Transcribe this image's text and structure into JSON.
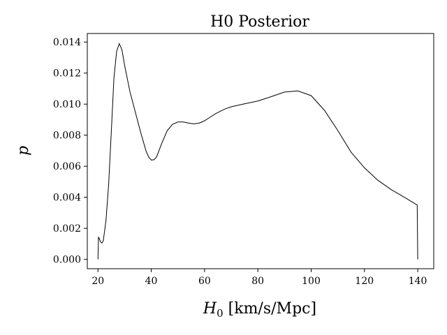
{
  "chart_data": {
    "type": "line",
    "title": "H0 Posterior",
    "xlabel_math": "H",
    "xlabel_sub": "0",
    "xlabel_units": " [km/s/Mpc]",
    "ylabel": "p",
    "xlim": [
      16,
      146
    ],
    "ylim": [
      -0.0006,
      0.01455
    ],
    "xticks": [
      20,
      40,
      60,
      80,
      100,
      120,
      140
    ],
    "xtick_labels": [
      "20",
      "40",
      "60",
      "80",
      "100",
      "120",
      "140"
    ],
    "yticks": [
      0.0,
      0.002,
      0.004,
      0.006,
      0.008,
      0.01,
      0.012,
      0.014
    ],
    "ytick_labels": [
      "0.000",
      "0.002",
      "0.004",
      "0.006",
      "0.008",
      "0.010",
      "0.012",
      "0.014"
    ],
    "grid": false,
    "line_color": "#000000",
    "series": [
      {
        "x": [
          20,
          20.2,
          21,
          21.5,
          22,
          23,
          24,
          25,
          26,
          27,
          28,
          29,
          30,
          32,
          34,
          36,
          38,
          39,
          40,
          41,
          42,
          44,
          46,
          48,
          50,
          52,
          54,
          56,
          58,
          60,
          62,
          64,
          66,
          68,
          70,
          75,
          80,
          85,
          90,
          95,
          100,
          105,
          110,
          115,
          120,
          125,
          130,
          135,
          139.8,
          140
        ],
        "y": [
          0.0,
          0.00145,
          0.00112,
          0.00105,
          0.0012,
          0.0025,
          0.0048,
          0.0082,
          0.0117,
          0.0134,
          0.0139,
          0.0135,
          0.0125,
          0.0108,
          0.0095,
          0.0082,
          0.007,
          0.0066,
          0.0064,
          0.00642,
          0.0066,
          0.0075,
          0.0083,
          0.0087,
          0.00885,
          0.00885,
          0.00878,
          0.00873,
          0.00878,
          0.00893,
          0.00915,
          0.00937,
          0.00955,
          0.00971,
          0.00983,
          0.01002,
          0.0102,
          0.01048,
          0.01078,
          0.01085,
          0.01055,
          0.0096,
          0.0083,
          0.0069,
          0.0059,
          0.0051,
          0.0045,
          0.004,
          0.0035,
          0.0
        ]
      }
    ]
  }
}
